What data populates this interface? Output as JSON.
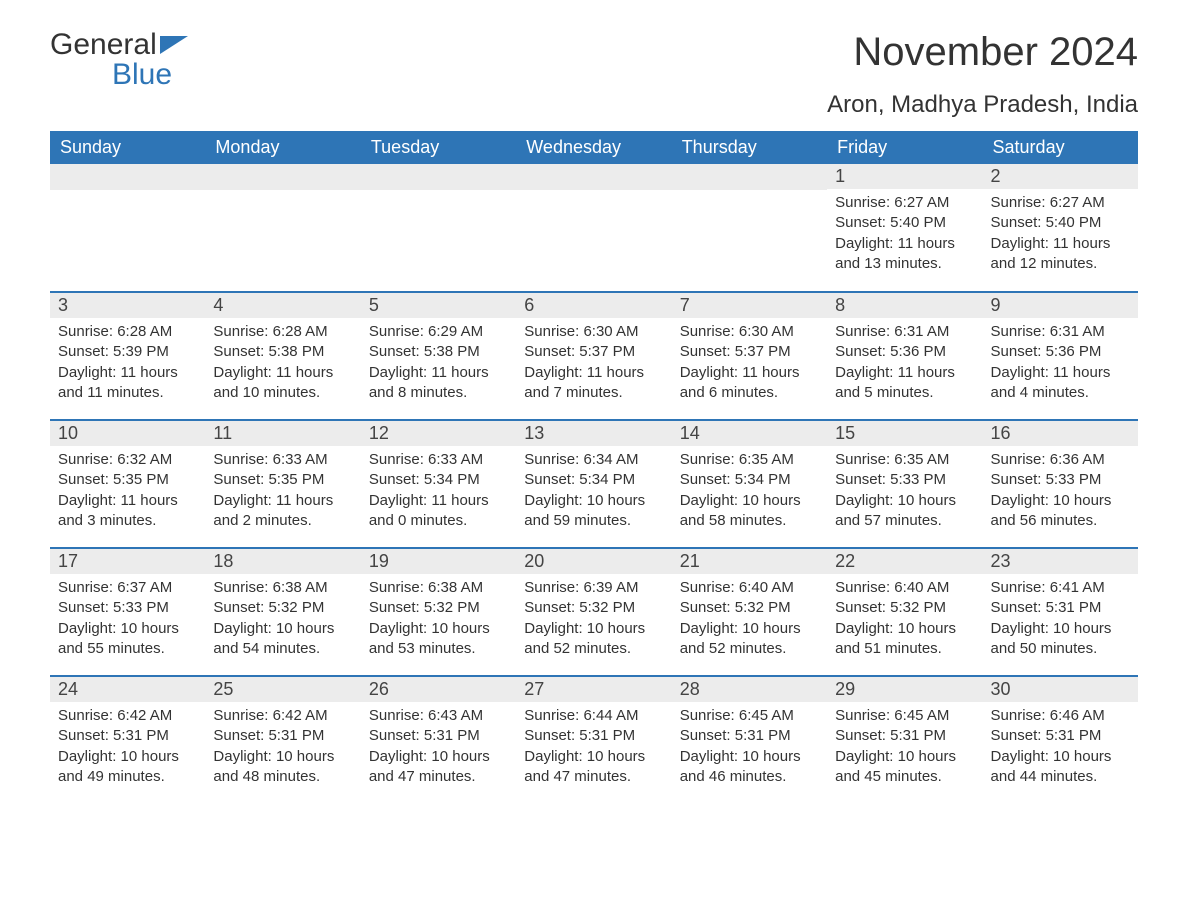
{
  "logo": {
    "word1": "General",
    "word2": "Blue"
  },
  "title": "November 2024",
  "location": "Aron, Madhya Pradesh, India",
  "colors": {
    "header_bg": "#2e75b6",
    "header_text": "#ffffff",
    "daynum_bg": "#ececec",
    "row_border": "#2e75b6",
    "text": "#333333",
    "logo_blue": "#2e75b6"
  },
  "columns": [
    "Sunday",
    "Monday",
    "Tuesday",
    "Wednesday",
    "Thursday",
    "Friday",
    "Saturday"
  ],
  "weeks": [
    [
      null,
      null,
      null,
      null,
      null,
      {
        "n": "1",
        "sr": "6:27 AM",
        "ss": "5:40 PM",
        "dl": "11 hours and 13 minutes."
      },
      {
        "n": "2",
        "sr": "6:27 AM",
        "ss": "5:40 PM",
        "dl": "11 hours and 12 minutes."
      }
    ],
    [
      {
        "n": "3",
        "sr": "6:28 AM",
        "ss": "5:39 PM",
        "dl": "11 hours and 11 minutes."
      },
      {
        "n": "4",
        "sr": "6:28 AM",
        "ss": "5:38 PM",
        "dl": "11 hours and 10 minutes."
      },
      {
        "n": "5",
        "sr": "6:29 AM",
        "ss": "5:38 PM",
        "dl": "11 hours and 8 minutes."
      },
      {
        "n": "6",
        "sr": "6:30 AM",
        "ss": "5:37 PM",
        "dl": "11 hours and 7 minutes."
      },
      {
        "n": "7",
        "sr": "6:30 AM",
        "ss": "5:37 PM",
        "dl": "11 hours and 6 minutes."
      },
      {
        "n": "8",
        "sr": "6:31 AM",
        "ss": "5:36 PM",
        "dl": "11 hours and 5 minutes."
      },
      {
        "n": "9",
        "sr": "6:31 AM",
        "ss": "5:36 PM",
        "dl": "11 hours and 4 minutes."
      }
    ],
    [
      {
        "n": "10",
        "sr": "6:32 AM",
        "ss": "5:35 PM",
        "dl": "11 hours and 3 minutes."
      },
      {
        "n": "11",
        "sr": "6:33 AM",
        "ss": "5:35 PM",
        "dl": "11 hours and 2 minutes."
      },
      {
        "n": "12",
        "sr": "6:33 AM",
        "ss": "5:34 PM",
        "dl": "11 hours and 0 minutes."
      },
      {
        "n": "13",
        "sr": "6:34 AM",
        "ss": "5:34 PM",
        "dl": "10 hours and 59 minutes."
      },
      {
        "n": "14",
        "sr": "6:35 AM",
        "ss": "5:34 PM",
        "dl": "10 hours and 58 minutes."
      },
      {
        "n": "15",
        "sr": "6:35 AM",
        "ss": "5:33 PM",
        "dl": "10 hours and 57 minutes."
      },
      {
        "n": "16",
        "sr": "6:36 AM",
        "ss": "5:33 PM",
        "dl": "10 hours and 56 minutes."
      }
    ],
    [
      {
        "n": "17",
        "sr": "6:37 AM",
        "ss": "5:33 PM",
        "dl": "10 hours and 55 minutes."
      },
      {
        "n": "18",
        "sr": "6:38 AM",
        "ss": "5:32 PM",
        "dl": "10 hours and 54 minutes."
      },
      {
        "n": "19",
        "sr": "6:38 AM",
        "ss": "5:32 PM",
        "dl": "10 hours and 53 minutes."
      },
      {
        "n": "20",
        "sr": "6:39 AM",
        "ss": "5:32 PM",
        "dl": "10 hours and 52 minutes."
      },
      {
        "n": "21",
        "sr": "6:40 AM",
        "ss": "5:32 PM",
        "dl": "10 hours and 52 minutes."
      },
      {
        "n": "22",
        "sr": "6:40 AM",
        "ss": "5:32 PM",
        "dl": "10 hours and 51 minutes."
      },
      {
        "n": "23",
        "sr": "6:41 AM",
        "ss": "5:31 PM",
        "dl": "10 hours and 50 minutes."
      }
    ],
    [
      {
        "n": "24",
        "sr": "6:42 AM",
        "ss": "5:31 PM",
        "dl": "10 hours and 49 minutes."
      },
      {
        "n": "25",
        "sr": "6:42 AM",
        "ss": "5:31 PM",
        "dl": "10 hours and 48 minutes."
      },
      {
        "n": "26",
        "sr": "6:43 AM",
        "ss": "5:31 PM",
        "dl": "10 hours and 47 minutes."
      },
      {
        "n": "27",
        "sr": "6:44 AM",
        "ss": "5:31 PM",
        "dl": "10 hours and 47 minutes."
      },
      {
        "n": "28",
        "sr": "6:45 AM",
        "ss": "5:31 PM",
        "dl": "10 hours and 46 minutes."
      },
      {
        "n": "29",
        "sr": "6:45 AM",
        "ss": "5:31 PM",
        "dl": "10 hours and 45 minutes."
      },
      {
        "n": "30",
        "sr": "6:46 AM",
        "ss": "5:31 PM",
        "dl": "10 hours and 44 minutes."
      }
    ]
  ],
  "labels": {
    "sunrise": "Sunrise: ",
    "sunset": "Sunset: ",
    "daylight": "Daylight: "
  }
}
